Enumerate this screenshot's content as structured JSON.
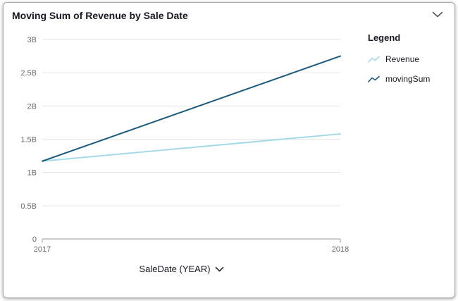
{
  "widget": {
    "title": "Moving Sum of Revenue by Sale Date"
  },
  "legend": {
    "title": "Legend",
    "items": [
      {
        "label": "Revenue",
        "color": "#a6d9e8"
      },
      {
        "label": "movingSum",
        "color": "#1d5b7c"
      }
    ]
  },
  "x_axis": {
    "label": "SaleDate (YEAR)",
    "ticks": [
      "2017",
      "2018"
    ]
  },
  "y_axis": {
    "ticks": [
      "3B",
      "2.5B",
      "2B",
      "1.5B",
      "1B",
      "0.5B",
      "0"
    ]
  },
  "chart_data": {
    "type": "line",
    "title": "Moving Sum of Revenue by Sale Date",
    "xlabel": "SaleDate (YEAR)",
    "ylabel": "",
    "x": [
      2017,
      2018
    ],
    "series": [
      {
        "name": "Revenue",
        "color": "#a6d9e8",
        "values": [
          1170000000,
          1580000000
        ]
      },
      {
        "name": "movingSum",
        "color": "#1d5b7c",
        "values": [
          1170000000,
          2750000000
        ]
      }
    ],
    "ylim": [
      0,
      3000000000
    ],
    "grid": true,
    "legend_position": "right"
  }
}
